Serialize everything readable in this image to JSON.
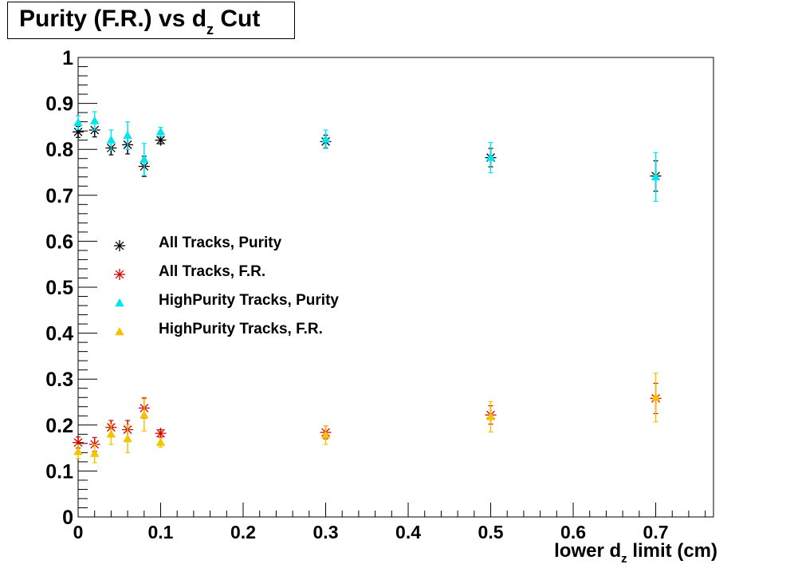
{
  "title": {
    "main": "Purity (F.R.) vs d",
    "sub": "z",
    "suffix": "Cut"
  },
  "xaxis": {
    "label_prefix": "lower d",
    "label_sub": "z",
    "label_suffix": " limit (cm)"
  },
  "colors": {
    "all_purity": "#000000",
    "all_fr": "#d40000",
    "hp_purity": "#00e5ee",
    "hp_fr": "#f5c400"
  },
  "legend": [
    {
      "label": "All Tracks, Purity",
      "marker": "asterisk",
      "color": "#000000"
    },
    {
      "label": "All Tracks, F.R.",
      "marker": "asterisk",
      "color": "#d40000"
    },
    {
      "label": "HighPurity Tracks, Purity",
      "marker": "triangle",
      "color": "#00e5ee"
    },
    {
      "label": "HighPurity Tracks, F.R.",
      "marker": "triangle",
      "color": "#f5c400"
    }
  ],
  "chart_data": {
    "type": "scatter",
    "xlim": [
      0,
      0.77
    ],
    "ylim": [
      0,
      1
    ],
    "x_ticks": [
      "0",
      "0.1",
      "0.2",
      "0.3",
      "0.4",
      "0.5",
      "0.6",
      "0.7"
    ],
    "y_ticks": [
      "0",
      "0.1",
      "0.2",
      "0.3",
      "0.4",
      "0.5",
      "0.6",
      "0.7",
      "0.8",
      "0.9",
      "1"
    ],
    "grid": false,
    "legend_position": "middle-left",
    "series": [
      {
        "name": "All Tracks, Purity",
        "marker": "asterisk",
        "color": "#000000",
        "x": [
          0,
          0.02,
          0.04,
          0.06,
          0.08,
          0.1,
          0.3,
          0.5,
          0.7
        ],
        "y": [
          0.838,
          0.842,
          0.803,
          0.81,
          0.763,
          0.82,
          0.817,
          0.782,
          0.742
        ],
        "err": [
          0.012,
          0.015,
          0.015,
          0.02,
          0.022,
          0.008,
          0.014,
          0.02,
          0.033
        ]
      },
      {
        "name": "All Tracks, F.R.",
        "marker": "asterisk",
        "color": "#d40000",
        "x": [
          0,
          0.02,
          0.04,
          0.06,
          0.08,
          0.1,
          0.3,
          0.5,
          0.7
        ],
        "y": [
          0.162,
          0.158,
          0.195,
          0.19,
          0.237,
          0.182,
          0.184,
          0.222,
          0.258
        ],
        "err": [
          0.012,
          0.015,
          0.015,
          0.02,
          0.022,
          0.008,
          0.014,
          0.02,
          0.033
        ]
      },
      {
        "name": "HighPurity Tracks, Purity",
        "marker": "triangle",
        "color": "#00e5ee",
        "x": [
          0,
          0.02,
          0.04,
          0.06,
          0.08,
          0.1,
          0.3,
          0.5,
          0.7
        ],
        "y": [
          0.858,
          0.862,
          0.82,
          0.83,
          0.778,
          0.838,
          0.822,
          0.782,
          0.74
        ],
        "err": [
          0.015,
          0.02,
          0.022,
          0.03,
          0.035,
          0.01,
          0.02,
          0.033,
          0.053
        ]
      },
      {
        "name": "HighPurity Tracks, F.R.",
        "marker": "triangle",
        "color": "#f5c400",
        "x": [
          0,
          0.02,
          0.04,
          0.06,
          0.08,
          0.1,
          0.3,
          0.5,
          0.7
        ],
        "y": [
          0.142,
          0.138,
          0.18,
          0.17,
          0.222,
          0.162,
          0.178,
          0.218,
          0.26
        ],
        "err": [
          0.015,
          0.02,
          0.022,
          0.03,
          0.035,
          0.01,
          0.02,
          0.033,
          0.053
        ]
      }
    ]
  }
}
